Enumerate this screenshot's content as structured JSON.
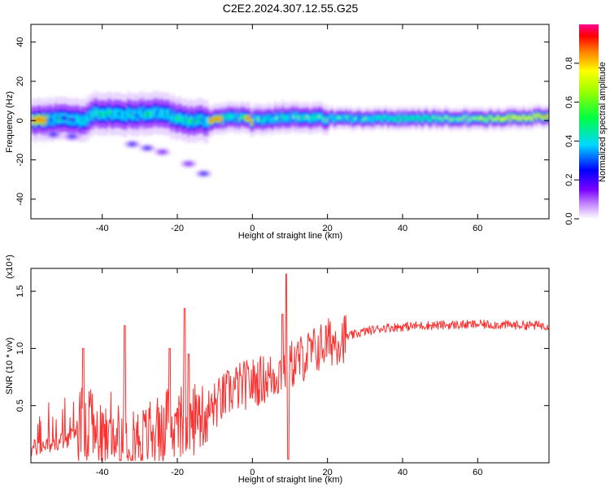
{
  "title": "C2E2.2024.307.12.55.G25",
  "chart_data": [
    {
      "type": "heatmap",
      "xlabel": "Height of straight line (km)",
      "ylabel": "Frequency (Hz)",
      "xlim": [
        -59,
        79
      ],
      "ylim": [
        -50,
        49
      ],
      "xticks": [
        "-40",
        "-20",
        "0",
        "20",
        "40",
        "60"
      ],
      "yticks": [
        "40",
        "20",
        "0",
        "-20",
        "-40"
      ],
      "colorbar": {
        "label": "Normalized spectral amplitude",
        "range": [
          0,
          1
        ],
        "ticks": [
          "0.0",
          "0.2",
          "0.4",
          "0.6",
          "0.8"
        ]
      },
      "ridge_frequency_hz": [
        {
          "x": -58,
          "y": 0
        },
        {
          "x": -50,
          "y": 1
        },
        {
          "x": -45,
          "y": 0
        },
        {
          "x": -42,
          "y": 4
        },
        {
          "x": -35,
          "y": 3
        },
        {
          "x": -25,
          "y": 4
        },
        {
          "x": -18,
          "y": 0
        },
        {
          "x": -12,
          "y": 0
        },
        {
          "x": -5,
          "y": 2
        },
        {
          "x": 0,
          "y": 0
        },
        {
          "x": 8,
          "y": 2
        },
        {
          "x": 20,
          "y": 1
        },
        {
          "x": 40,
          "y": 1
        },
        {
          "x": 60,
          "y": 1
        },
        {
          "x": 79,
          "y": 2
        }
      ],
      "secondary_blobs": [
        {
          "x": -53,
          "y": -7,
          "amp": 0.15
        },
        {
          "x": -48,
          "y": -8,
          "amp": 0.2
        },
        {
          "x": -32,
          "y": -12,
          "amp": 0.15
        },
        {
          "x": -28,
          "y": -14,
          "amp": 0.2
        },
        {
          "x": -24,
          "y": -16,
          "amp": 0.05
        },
        {
          "x": -17,
          "y": -22,
          "amp": 0.05
        },
        {
          "x": -13,
          "y": -27,
          "amp": 0.15
        }
      ]
    },
    {
      "type": "line",
      "xlabel": "Height of straight line (km)",
      "ylabel": "SNR (10 * v/v)",
      "yexponent": "(x10⁴)",
      "xlim": [
        -59,
        79
      ],
      "ylim": [
        0,
        1.7
      ],
      "xticks": [
        "-40",
        "-20",
        "0",
        "20",
        "40",
        "60"
      ],
      "yticks": [
        "1.5",
        "1.0",
        "0.5"
      ],
      "color": "#ff3030",
      "baseline": [
        {
          "x": -59,
          "y": 0.12
        },
        {
          "x": -50,
          "y": 0.2
        },
        {
          "x": -45,
          "y": 0.27
        },
        {
          "x": -40,
          "y": 0.22
        },
        {
          "x": -30,
          "y": 0.22
        },
        {
          "x": -22,
          "y": 0.25
        },
        {
          "x": -15,
          "y": 0.35
        },
        {
          "x": -10,
          "y": 0.5
        },
        {
          "x": -5,
          "y": 0.65
        },
        {
          "x": 0,
          "y": 0.7
        },
        {
          "x": 5,
          "y": 0.75
        },
        {
          "x": 10,
          "y": 0.85
        },
        {
          "x": 15,
          "y": 0.95
        },
        {
          "x": 20,
          "y": 1.05
        },
        {
          "x": 25,
          "y": 1.1
        },
        {
          "x": 30,
          "y": 1.15
        },
        {
          "x": 35,
          "y": 1.18
        },
        {
          "x": 45,
          "y": 1.2
        },
        {
          "x": 60,
          "y": 1.21
        },
        {
          "x": 79,
          "y": 1.2
        }
      ],
      "spikes": [
        {
          "x": -45,
          "y": 1.0
        },
        {
          "x": -34,
          "y": 1.2
        },
        {
          "x": -22,
          "y": 1.0
        },
        {
          "x": -18,
          "y": 1.35
        },
        {
          "x": -17,
          "y": 0.95
        },
        {
          "x": 8,
          "y": 1.3
        },
        {
          "x": 9,
          "y": 1.65
        },
        {
          "x": 9.5,
          "y": 0.03
        }
      ]
    }
  ]
}
